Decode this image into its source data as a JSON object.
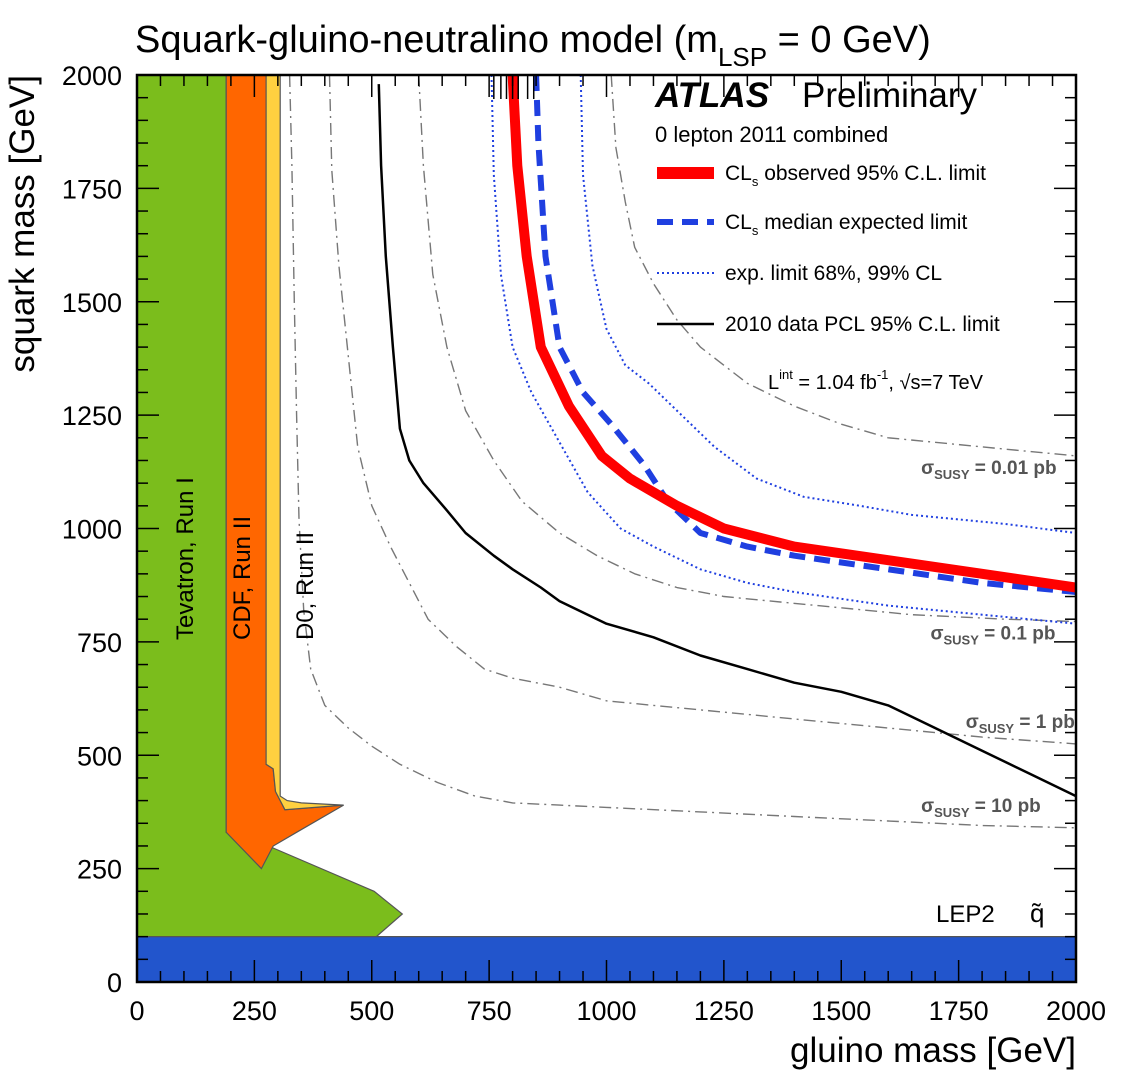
{
  "chart_data": {
    "type": "line",
    "title": "Squark-gluino-neutralino model (m",
    "title_sub": "LSP",
    "title_tail": " = 0 GeV)",
    "xlabel": "gluino mass [GeV]",
    "ylabel": "squark mass [GeV]",
    "xlim": [
      0,
      2000
    ],
    "ylim": [
      0,
      2000
    ],
    "xticks": [
      "0",
      "250",
      "500",
      "750",
      "1000",
      "1250",
      "1500",
      "1750",
      "2000"
    ],
    "yticks": [
      "0",
      "250",
      "500",
      "750",
      "1000",
      "1250",
      "1500",
      "1750",
      "2000"
    ],
    "xtick_values": [
      0,
      250,
      500,
      750,
      1000,
      1250,
      1500,
      1750,
      2000
    ],
    "ytick_values": [
      0,
      250,
      500,
      750,
      1000,
      1250,
      1500,
      1750,
      2000
    ],
    "excluded_regions": [
      {
        "name": "Tevatron, Run I",
        "color": "#7bbd1c",
        "points": [
          [
            0,
            0
          ],
          [
            0,
            2000
          ],
          [
            190,
            2000
          ],
          [
            190,
            330
          ],
          [
            280,
            300
          ],
          [
            505,
            200
          ],
          [
            565,
            150
          ],
          [
            510,
            100
          ],
          [
            0,
            100
          ]
        ]
      },
      {
        "name": "CDF, Run II",
        "color": "#ff6600",
        "points": [
          [
            190,
            2000
          ],
          [
            275,
            2000
          ],
          [
            275,
            480
          ],
          [
            290,
            470
          ],
          [
            295,
            420
          ],
          [
            315,
            380
          ],
          [
            440,
            390
          ],
          [
            340,
            330
          ],
          [
            290,
            300
          ],
          [
            265,
            250
          ],
          [
            190,
            330
          ]
        ]
      },
      {
        "name": "D0, Run II",
        "color": "#ffd040",
        "points": [
          [
            275,
            2000
          ],
          [
            305,
            2000
          ],
          [
            305,
            410
          ],
          [
            320,
            400
          ],
          [
            350,
            395
          ],
          [
            440,
            390
          ],
          [
            315,
            380
          ],
          [
            295,
            420
          ],
          [
            290,
            470
          ],
          [
            275,
            480
          ]
        ]
      },
      {
        "name": "LEP2",
        "color": "#2255cc",
        "points": [
          [
            0,
            0
          ],
          [
            0,
            100
          ],
          [
            2000,
            100
          ],
          [
            2000,
            0
          ]
        ]
      }
    ],
    "series": [
      {
        "name": "CL_s observed 95% C.L. limit",
        "color": "#ff0000",
        "style": "solid-thick",
        "x": [
          800,
          810,
          830,
          860,
          920,
          990,
          1050,
          1150,
          1250,
          1400,
          1600,
          1800,
          2000
        ],
        "y": [
          2000,
          1800,
          1600,
          1400,
          1270,
          1160,
          1110,
          1050,
          1000,
          960,
          930,
          900,
          870
        ]
      },
      {
        "name": "CL_s median expected limit",
        "color": "#1f3fe0",
        "style": "dashed",
        "x": [
          850,
          855,
          870,
          900,
          950,
          1010,
          1080,
          1130,
          1200,
          1300,
          1400,
          1600,
          1800,
          2000
        ],
        "y": [
          2000,
          1850,
          1600,
          1400,
          1300,
          1230,
          1140,
          1060,
          990,
          960,
          940,
          910,
          880,
          860
        ]
      },
      {
        "name": "exp. limit 68%, 99% CL",
        "color": "#1f3fe0",
        "style": "dotted",
        "x": [
          945,
          950,
          970,
          1000,
          1040,
          1090,
          1150,
          1230,
          1320,
          1420,
          1540,
          1650,
          1750,
          1850,
          2000
        ],
        "y": [
          2000,
          1780,
          1580,
          1440,
          1360,
          1320,
          1260,
          1180,
          1110,
          1070,
          1050,
          1030,
          1020,
          1010,
          990
        ]
      },
      {
        "name": "exp. limit 68%, 99% CL (inner)",
        "color": "#1f3fe0",
        "style": "dotted",
        "x": [
          755,
          760,
          775,
          800,
          840,
          900,
          960,
          1030,
          1100,
          1200,
          1300,
          1400,
          1600,
          1800,
          2000
        ],
        "y": [
          2000,
          1780,
          1560,
          1400,
          1300,
          1190,
          1080,
          1000,
          960,
          910,
          880,
          860,
          830,
          810,
          790
        ]
      },
      {
        "name": "2010 data PCL 95% C.L. limit",
        "color": "#000000",
        "style": "solid",
        "x": [
          515,
          520,
          530,
          545,
          560,
          580,
          610,
          660,
          700,
          760,
          800,
          860,
          900,
          960,
          1000,
          1100,
          1200,
          1300,
          1400,
          1500,
          1600,
          1700,
          1800,
          1900,
          2000
        ],
        "y": [
          1980,
          1800,
          1600,
          1400,
          1220,
          1150,
          1100,
          1040,
          990,
          940,
          910,
          870,
          840,
          810,
          790,
          760,
          720,
          690,
          660,
          640,
          610,
          560,
          510,
          460,
          410
        ]
      },
      {
        "name": "sigma_SUSY = 0.01 pb",
        "color": "#777777",
        "style": "dashdot",
        "x": [
          1010,
          1020,
          1040,
          1060,
          1100,
          1150,
          1200,
          1300,
          1400,
          1500,
          1600,
          1700,
          1800,
          1900,
          2000
        ],
        "y": [
          2000,
          1840,
          1720,
          1620,
          1540,
          1460,
          1400,
          1320,
          1270,
          1230,
          1200,
          1190,
          1180,
          1170,
          1160
        ]
      },
      {
        "name": "sigma_SUSY = 0.1 pb",
        "color": "#777777",
        "style": "dashdot",
        "x": [
          600,
          610,
          630,
          660,
          700,
          760,
          820,
          900,
          980,
          1060,
          1150,
          1250,
          1350,
          1450,
          1550,
          1650,
          1750,
          1850,
          2000
        ],
        "y": [
          2000,
          1800,
          1560,
          1400,
          1260,
          1150,
          1060,
          990,
          940,
          900,
          870,
          850,
          840,
          830,
          820,
          810,
          805,
          800,
          795
        ]
      },
      {
        "name": "sigma_SUSY = 1 pb",
        "color": "#777777",
        "style": "dashdot",
        "x": [
          410,
          415,
          430,
          450,
          470,
          500,
          540,
          580,
          620,
          680,
          740,
          800,
          900,
          1000,
          1100,
          1200,
          1300,
          1400,
          1500,
          1600,
          1800,
          2000
        ],
        "y": [
          2000,
          1790,
          1580,
          1380,
          1180,
          1050,
          960,
          880,
          800,
          740,
          690,
          670,
          650,
          620,
          610,
          600,
          590,
          580,
          570,
          560,
          540,
          525
        ]
      },
      {
        "name": "sigma_SUSY = 10 pb",
        "color": "#777777",
        "style": "dashdot",
        "x": [
          325,
          330,
          335,
          340,
          345,
          355,
          370,
          400,
          450,
          500,
          560,
          640,
          720,
          800,
          900,
          1000,
          1200,
          1400,
          1600,
          1800,
          2000
        ],
        "y": [
          2000,
          1800,
          1500,
          1250,
          1020,
          820,
          690,
          610,
          560,
          520,
          480,
          440,
          410,
          395,
          390,
          385,
          375,
          365,
          355,
          345,
          340
        ]
      }
    ],
    "top_ticks_x": [
      760,
      775,
      787,
      800,
      812,
      832,
      845
    ],
    "region_labels": [
      "Tevatron, Run I",
      "CDF, Run II",
      "D0, Run II"
    ],
    "lep_label": "LEP2",
    "lep_symbol": "q̃",
    "xsec_labels": [
      {
        "text": "σ",
        "sub": "SUSY",
        "value": " = 0.01 pb",
        "x": 1670,
        "y": 1120
      },
      {
        "text": "σ",
        "sub": "SUSY",
        "value": " = 0.1 pb",
        "x": 1690,
        "y": 755
      },
      {
        "text": "σ",
        "sub": "SUSY",
        "value": " = 1 pb",
        "x": 1765,
        "y": 560
      },
      {
        "text": "σ",
        "sub": "SUSY",
        "value": " = 10 pb",
        "x": 1670,
        "y": 375
      }
    ],
    "legend": {
      "placement": "top-right",
      "atlas": "ATLAS",
      "preliminary": "Preliminary",
      "subtitle": "0 lepton 2011 combined",
      "entries": [
        {
          "label": "CL",
          "sub": "s",
          "tail": " observed 95% C.L. limit",
          "color": "#ff0000",
          "style": "solid-thick"
        },
        {
          "label": "CL",
          "sub": "s",
          "tail": " median expected limit",
          "color": "#1f3fe0",
          "style": "dashed"
        },
        {
          "label": "exp. limit 68%, 99% CL",
          "sub": "",
          "tail": "",
          "color": "#1f3fe0",
          "style": "dotted"
        },
        {
          "label": "2010 data PCL 95% C.L. limit",
          "sub": "",
          "tail": "",
          "color": "#000000",
          "style": "solid"
        }
      ],
      "lumi_L": "L",
      "lumi_sup": "int",
      "lumi_mid": " = 1.04 fb",
      "lumi_sup2": "-1",
      "lumi_tail": ", √s=7 TeV"
    }
  }
}
